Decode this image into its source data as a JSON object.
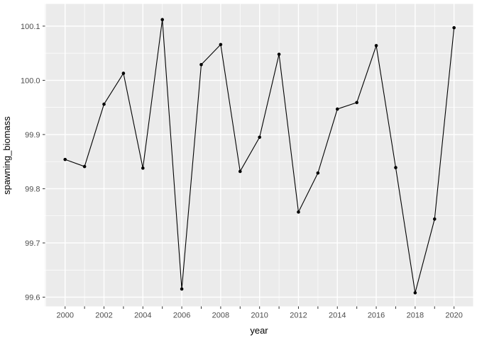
{
  "figure": {
    "background": "#ffffff"
  },
  "chart_data": {
    "type": "line",
    "title": "",
    "xlabel": "year",
    "ylabel": "spawning_biomass",
    "x": [
      2000,
      2001,
      2002,
      2003,
      2004,
      2005,
      2006,
      2007,
      2008,
      2009,
      2010,
      2011,
      2012,
      2013,
      2014,
      2015,
      2016,
      2017,
      2018,
      2019,
      2020
    ],
    "values": [
      99.854,
      99.841,
      99.956,
      100.013,
      99.838,
      100.112,
      99.615,
      100.029,
      100.066,
      99.832,
      99.895,
      100.048,
      99.757,
      99.829,
      99.947,
      99.959,
      100.064,
      99.839,
      99.608,
      99.744,
      100.097
    ],
    "xlim": [
      1998.97,
      2020.98
    ],
    "ylim": [
      99.583,
      100.141
    ],
    "x_major": [
      2000,
      2002,
      2004,
      2006,
      2008,
      2010,
      2012,
      2014,
      2016,
      2018,
      2020
    ],
    "x_major_labels": [
      "2000",
      "2002",
      "2004",
      "2006",
      "2008",
      "2010",
      "2012",
      "2014",
      "2016",
      "2018",
      "2020"
    ],
    "x_minor": [
      1999,
      2001,
      2003,
      2005,
      2007,
      2009,
      2011,
      2013,
      2015,
      2017,
      2019,
      2021
    ],
    "x_tick_marks": [
      2000,
      2001,
      2002,
      2003,
      2004,
      2005,
      2006,
      2007,
      2008,
      2009,
      2010,
      2011,
      2012,
      2013,
      2014,
      2015,
      2016,
      2017,
      2018,
      2019,
      2020
    ],
    "y_major": [
      99.6,
      99.7,
      99.8,
      99.9,
      100.0,
      100.1
    ],
    "y_major_labels": [
      "99.6",
      "99.7",
      "99.8",
      "99.9",
      "100.0",
      "100.1"
    ],
    "y_minor": [
      99.65,
      99.75,
      99.85,
      99.95,
      100.05
    ],
    "grid": "on",
    "legend": "none",
    "style": {
      "panel_bg": "#EBEBEB",
      "grid_major_color": "#FFFFFF",
      "grid_minor_color": "#FFFFFF",
      "grid_major_width": 1.4,
      "grid_minor_width": 0.7,
      "line_color": "#000000",
      "line_width": 1.1,
      "point_color": "#000000",
      "point_radius": 2.3,
      "tick_color": "#333333",
      "tick_label_color": "#4D4D4D",
      "tick_label_size": 11
    }
  }
}
